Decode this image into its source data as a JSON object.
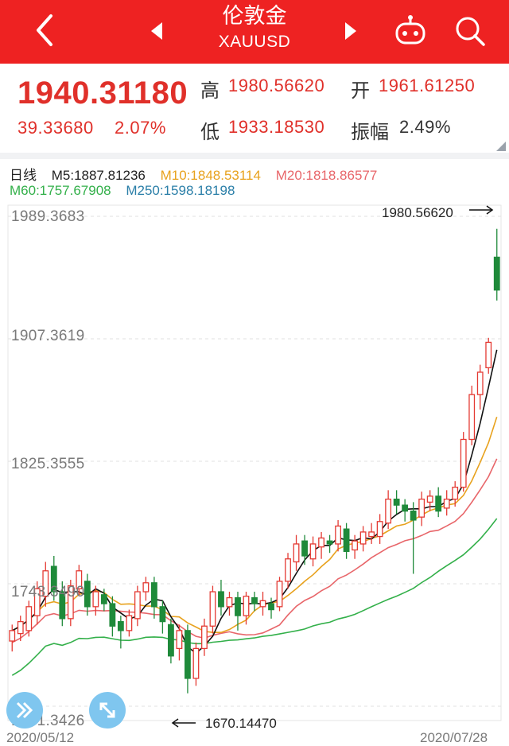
{
  "header": {
    "title": "伦敦金",
    "subtitle": "XAUUSD",
    "icons": [
      "back-icon",
      "prev-arrow-icon",
      "next-arrow-icon",
      "robot-icon",
      "search-icon"
    ]
  },
  "quote": {
    "price": "1940.31180",
    "change": "39.33680",
    "change_pct": "2.07%",
    "high_label": "高",
    "high": "1980.56620",
    "open_label": "开",
    "open": "1961.61250",
    "low_label": "低",
    "low": "1933.18530",
    "amplitude_label": "振幅",
    "amplitude": "2.49%"
  },
  "ma": {
    "period": "日线",
    "m5": "M5:1887.81236",
    "m10": "M10:1848.53114",
    "m20": "M20:1818.86577",
    "m60": "M60:1757.67908",
    "m250": "M250:1598.18198"
  },
  "colors": {
    "up": "#e43a33",
    "down": "#1f8a3a",
    "m5": "#111111",
    "m10": "#e8a21e",
    "m20": "#e8666a",
    "m60": "#33b04a",
    "m250": "#2b7fa8",
    "brand": "#ee2222"
  },
  "chart_data": {
    "type": "candlestick",
    "y_ticks": [
      "1989.3683",
      "1907.3619",
      "1825.3555",
      "1743.3490",
      "1661.3426"
    ],
    "ylim": [
      1661.3426,
      1989.3683
    ],
    "x_start": "2020/05/12",
    "x_end": "2020/07/28",
    "max_label": "1980.56620",
    "min_label": "1670.14470",
    "candles": [
      [
        1705,
        1712,
        1698,
        1716
      ],
      [
        1710,
        1718,
        1705,
        1722
      ],
      [
        1712,
        1728,
        1708,
        1732
      ],
      [
        1722,
        1740,
        1716,
        1745
      ],
      [
        1735,
        1752,
        1728,
        1758
      ],
      [
        1755,
        1738,
        1732,
        1762
      ],
      [
        1738,
        1720,
        1715,
        1745
      ],
      [
        1720,
        1742,
        1715,
        1746
      ],
      [
        1740,
        1752,
        1735,
        1756
      ],
      [
        1745,
        1728,
        1722,
        1750
      ],
      [
        1728,
        1738,
        1722,
        1742
      ],
      [
        1736,
        1730,
        1725,
        1740
      ],
      [
        1730,
        1715,
        1708,
        1735
      ],
      [
        1718,
        1712,
        1700,
        1722
      ],
      [
        1712,
        1722,
        1708,
        1726
      ],
      [
        1720,
        1738,
        1715,
        1742
      ],
      [
        1738,
        1744,
        1732,
        1748
      ],
      [
        1744,
        1728,
        1720,
        1748
      ],
      [
        1728,
        1718,
        1710,
        1732
      ],
      [
        1716,
        1695,
        1690,
        1720
      ],
      [
        1700,
        1712,
        1692,
        1716
      ],
      [
        1712,
        1680,
        1670,
        1716
      ],
      [
        1680,
        1700,
        1675,
        1704
      ],
      [
        1700,
        1715,
        1695,
        1720
      ],
      [
        1715,
        1738,
        1710,
        1742
      ],
      [
        1738,
        1728,
        1722,
        1746
      ],
      [
        1728,
        1734,
        1722,
        1738
      ],
      [
        1734,
        1722,
        1712,
        1738
      ],
      [
        1722,
        1735,
        1716,
        1738
      ],
      [
        1734,
        1730,
        1725,
        1738
      ],
      [
        1728,
        1732,
        1722,
        1738
      ],
      [
        1730,
        1726,
        1720,
        1734
      ],
      [
        1728,
        1745,
        1725,
        1748
      ],
      [
        1745,
        1760,
        1740,
        1764
      ],
      [
        1758,
        1770,
        1752,
        1776
      ],
      [
        1772,
        1762,
        1756,
        1776
      ],
      [
        1760,
        1770,
        1755,
        1775
      ],
      [
        1768,
        1774,
        1760,
        1778
      ],
      [
        1772,
        1770,
        1764,
        1776
      ],
      [
        1770,
        1782,
        1765,
        1786
      ],
      [
        1780,
        1765,
        1760,
        1784
      ],
      [
        1766,
        1772,
        1760,
        1776
      ],
      [
        1770,
        1778,
        1765,
        1782
      ],
      [
        1775,
        1778,
        1770,
        1784
      ],
      [
        1775,
        1785,
        1770,
        1790
      ],
      [
        1784,
        1800,
        1780,
        1806
      ],
      [
        1800,
        1796,
        1790,
        1806
      ],
      [
        1796,
        1792,
        1785,
        1800
      ],
      [
        1792,
        1786,
        1750,
        1798
      ],
      [
        1788,
        1800,
        1782,
        1805
      ],
      [
        1798,
        1802,
        1792,
        1806
      ],
      [
        1802,
        1792,
        1788,
        1808
      ],
      [
        1794,
        1800,
        1789,
        1806
      ],
      [
        1800,
        1808,
        1795,
        1812
      ],
      [
        1808,
        1840,
        1805,
        1845
      ],
      [
        1840,
        1870,
        1836,
        1876
      ],
      [
        1870,
        1885,
        1860,
        1890
      ],
      [
        1888,
        1905,
        1884,
        1908
      ],
      [
        1962,
        1940,
        1933,
        1981
      ]
    ]
  },
  "fab": {
    "left_icon": "double-chevron-icon",
    "right_icon": "expand-icon"
  }
}
